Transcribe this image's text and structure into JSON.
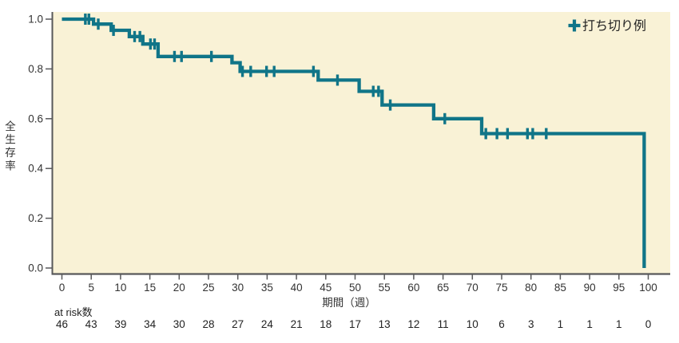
{
  "colors": {
    "curve": "#107588",
    "plot_background": "#f9f2d6",
    "axis_line": "#58585a",
    "text": "#333333",
    "page_background": "#ffffff"
  },
  "chart_data": {
    "type": "line",
    "subtype": "kaplan-meier-step",
    "title": "",
    "xlabel": "期間（週）",
    "ylabel": "全生存率",
    "xlim": [
      0,
      100
    ],
    "ylim": [
      0.0,
      1.0
    ],
    "x_ticks": [
      0,
      5,
      10,
      15,
      20,
      25,
      30,
      35,
      40,
      45,
      50,
      55,
      60,
      65,
      70,
      75,
      80,
      85,
      90,
      95,
      100
    ],
    "y_ticks": [
      0.0,
      0.2,
      0.4,
      0.6,
      0.8,
      1.0
    ],
    "grid": false,
    "legend_position": "top-right",
    "series": [
      {
        "name": "全生存率",
        "color": "#107588",
        "step_points": [
          [
            0,
            1.0
          ],
          [
            5.4,
            1.0
          ],
          [
            5.4,
            0.98
          ],
          [
            8.4,
            0.98
          ],
          [
            8.4,
            0.955
          ],
          [
            11.5,
            0.955
          ],
          [
            11.5,
            0.93
          ],
          [
            13.8,
            0.93
          ],
          [
            13.8,
            0.9
          ],
          [
            16.4,
            0.9
          ],
          [
            16.4,
            0.85
          ],
          [
            29.0,
            0.85
          ],
          [
            29.0,
            0.825
          ],
          [
            30.4,
            0.825
          ],
          [
            30.4,
            0.79
          ],
          [
            43.7,
            0.79
          ],
          [
            43.7,
            0.755
          ],
          [
            50.7,
            0.755
          ],
          [
            50.7,
            0.71
          ],
          [
            54.6,
            0.71
          ],
          [
            54.6,
            0.655
          ],
          [
            63.4,
            0.655
          ],
          [
            63.4,
            0.6
          ],
          [
            71.6,
            0.6
          ],
          [
            71.6,
            0.54
          ],
          [
            99.3,
            0.54
          ],
          [
            99.3,
            0.0
          ]
        ]
      }
    ],
    "censored": {
      "legend_label": "打ち切り例",
      "marks": [
        [
          4.0,
          1.0
        ],
        [
          4.6,
          1.0
        ],
        [
          6.2,
          0.98
        ],
        [
          8.8,
          0.955
        ],
        [
          12.4,
          0.93
        ],
        [
          13.3,
          0.93
        ],
        [
          15.1,
          0.9
        ],
        [
          15.8,
          0.9
        ],
        [
          19.2,
          0.85
        ],
        [
          20.4,
          0.85
        ],
        [
          25.5,
          0.85
        ],
        [
          30.8,
          0.79
        ],
        [
          32.2,
          0.79
        ],
        [
          34.9,
          0.79
        ],
        [
          36.2,
          0.79
        ],
        [
          42.9,
          0.79
        ],
        [
          47.0,
          0.755
        ],
        [
          53.1,
          0.71
        ],
        [
          54.0,
          0.71
        ],
        [
          56.0,
          0.655
        ],
        [
          65.3,
          0.6
        ],
        [
          72.3,
          0.54
        ],
        [
          74.2,
          0.54
        ],
        [
          76.0,
          0.54
        ],
        [
          79.4,
          0.54
        ],
        [
          80.3,
          0.54
        ],
        [
          82.6,
          0.54
        ]
      ]
    },
    "at_risk": {
      "label": "at risk数",
      "times": [
        0,
        5,
        10,
        15,
        20,
        25,
        30,
        35,
        40,
        45,
        50,
        55,
        60,
        65,
        70,
        75,
        80,
        85,
        90,
        95,
        100
      ],
      "values": [
        46,
        43,
        39,
        34,
        30,
        28,
        27,
        24,
        21,
        18,
        17,
        13,
        12,
        11,
        10,
        6,
        3,
        1,
        1,
        1,
        0
      ]
    }
  }
}
